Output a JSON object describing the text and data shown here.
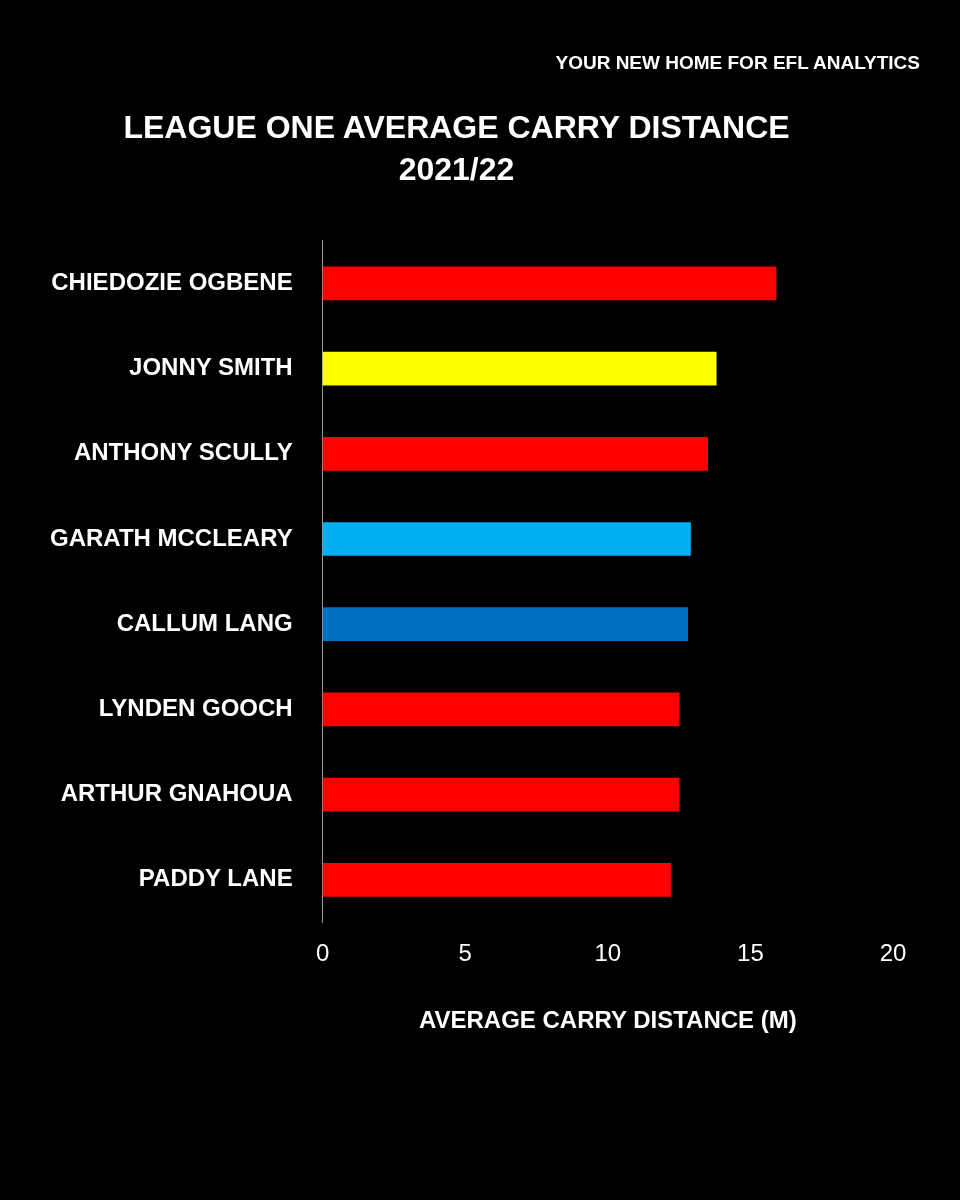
{
  "chart_data": {
    "type": "bar",
    "orientation": "horizontal",
    "title": "LEAGUE ONE AVERAGE CARRY DISTANCE",
    "subtitle": "2021/22",
    "xlabel": "AVERAGE CARRY DISTANCE (M)",
    "annotations": [
      "YOUR NEW HOME FOR EFL ANALYTICS"
    ],
    "categories": [
      "CHIEDOZIE OGBENE",
      "JONNY SMITH",
      "ANTHONY SCULLY",
      "GARATH MCCLEARY",
      "CALLUM LANG",
      "LYNDEN GOOCH",
      "ARTHUR GNAHOUA",
      "PADDY LANE"
    ],
    "values": [
      15.9,
      13.8,
      13.5,
      12.9,
      12.8,
      12.5,
      12.5,
      12.2
    ],
    "colors": [
      "#ff0000",
      "#ffff00",
      "#ff0000",
      "#00b0f0",
      "#0070c0",
      "#ff0000",
      "#ff0000",
      "#ff0000"
    ],
    "xlim": [
      0,
      20
    ],
    "xticks": [
      0,
      5,
      10,
      15,
      20
    ],
    "grid": false,
    "legend": false
  }
}
